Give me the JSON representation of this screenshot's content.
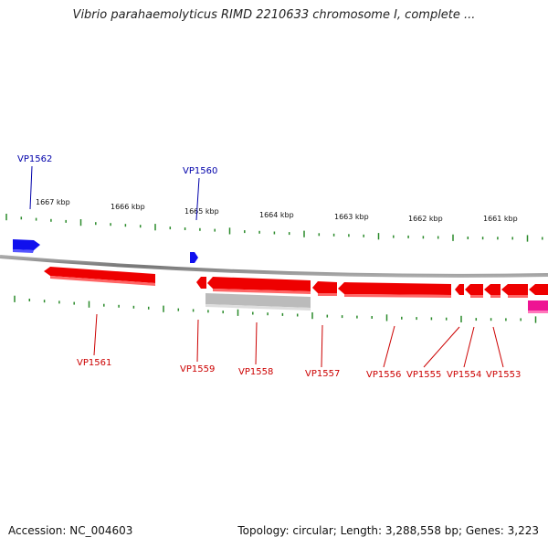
{
  "title": "Vibrio parahaemolyticus RIMD 2210633 chromosome I, complete ...",
  "footer": {
    "accession": "Accession: NC_004603",
    "summary": "Topology: circular; Length: 3,288,558 bp; Genes: 3,223"
  },
  "colors": {
    "forward_gene": "#1010ee",
    "reverse_gene": "#ee0000",
    "reverse_label": "#cc0000",
    "forward_label": "#0000aa",
    "ticks": "#2a8a2a",
    "backbone": "#888888",
    "grey_feature": "#bbbbbb",
    "pink_feature": "#ee1493"
  },
  "kbp_labels": [
    "1667 kbp",
    "1666 kbp",
    "1665 kbp",
    "1664 kbp",
    "1663 kbp",
    "1662 kbp",
    "1661 kbp"
  ],
  "genes": [
    {
      "name": "VP1562",
      "strand": "+"
    },
    {
      "name": "VP1560",
      "strand": "+"
    },
    {
      "name": "VP1561",
      "strand": "-"
    },
    {
      "name": "VP1559",
      "strand": "-"
    },
    {
      "name": "VP1558",
      "strand": "-"
    },
    {
      "name": "VP1557",
      "strand": "-"
    },
    {
      "name": "VP1556",
      "strand": "-"
    },
    {
      "name": "VP1555",
      "strand": "-"
    },
    {
      "name": "VP1554",
      "strand": "-"
    },
    {
      "name": "VP1553",
      "strand": "-"
    }
  ]
}
